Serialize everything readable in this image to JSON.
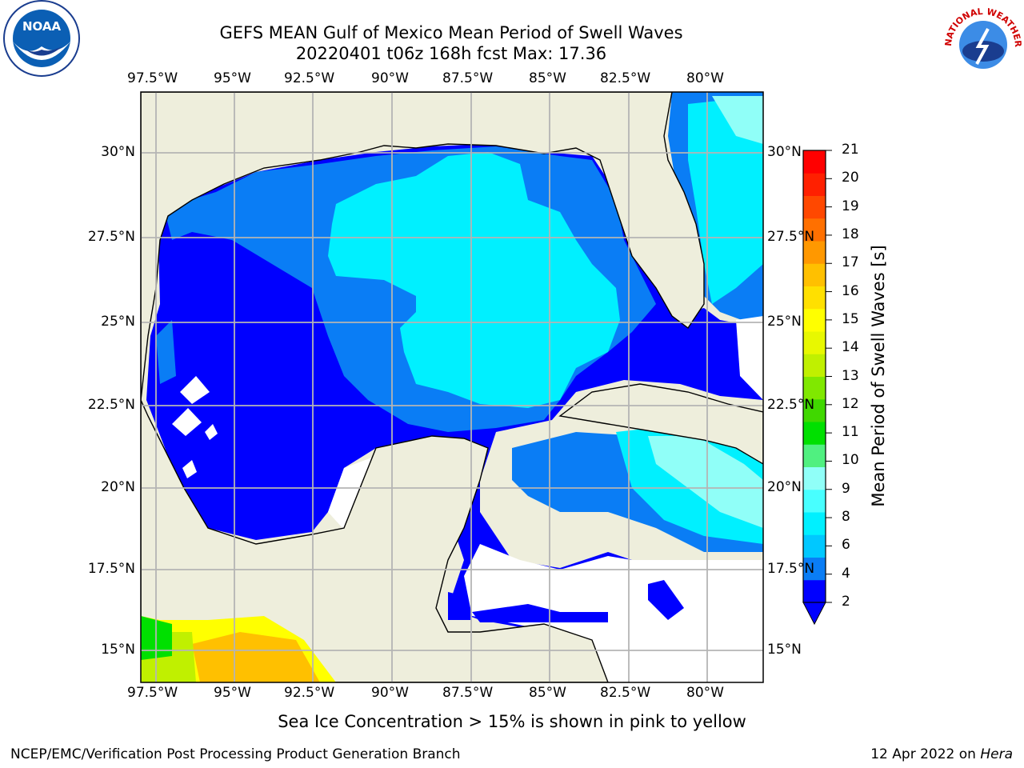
{
  "title_line1": "GEFS MEAN Gulf of Mexico Mean Period of Swell Waves",
  "title_line2": "20220401 t06z 168h fcst   Max: 17.36",
  "lon_labels": [
    "97.5°W",
    "95°W",
    "92.5°W",
    "90°W",
    "87.5°W",
    "85°W",
    "82.5°W",
    "80°W"
  ],
  "lat_labels": [
    "30°N",
    "27.5°N",
    "25°N",
    "22.5°N",
    "20°N",
    "17.5°N",
    "15°N"
  ],
  "colorbar": {
    "label": "Mean Period of Swell Waves [s]",
    "ticks": [
      "21",
      "20",
      "19",
      "18",
      "17",
      "16",
      "15",
      "14",
      "13",
      "12",
      "11",
      "10",
      "9",
      "8",
      "6",
      "4",
      "2"
    ],
    "colors": [
      "#0000ff",
      "#0a7df5",
      "#00c8ff",
      "#00f0ff",
      "#48ffff",
      "#90fff8",
      "#50f080",
      "#00e000",
      "#40d800",
      "#80e800",
      "#c0f000",
      "#e8f800",
      "#ffff00",
      "#ffe000",
      "#ffc000",
      "#ff9800",
      "#ff7000",
      "#ff4800",
      "#ff2000",
      "#ff0000"
    ]
  },
  "ice_note": "Sea Ice Concentration > 15% is shown in pink to yellow",
  "footer_left": "NCEP/EMC/Verification Post Processing Product Generation Branch",
  "footer_right_date": "12 Apr 2022 on ",
  "footer_right_host": "Hera",
  "logos": {
    "left": "NOAA",
    "right_arc": "NATIONAL WEATHER SERVICE"
  },
  "colors": {
    "land": "#eeeedc",
    "grid": "#b4b4b4"
  }
}
